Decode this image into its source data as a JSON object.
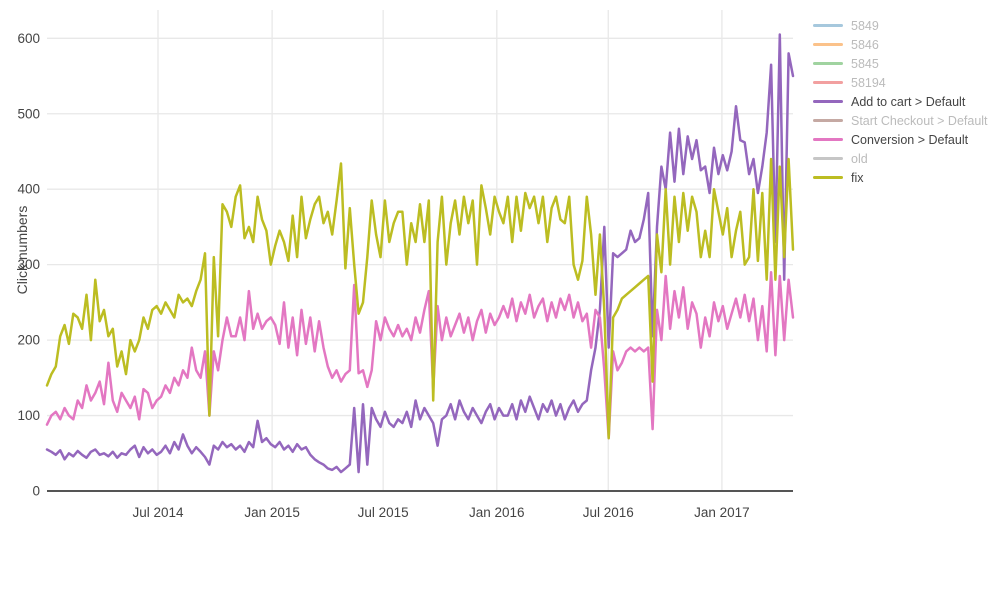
{
  "colors": {
    "axis_text": "#444444",
    "grid": "#e8e8e8",
    "zero_line": "#555555",
    "hidden_legend_text": "#bbbbbb",
    "background": "#ffffff"
  },
  "chart_data": {
    "type": "line",
    "title": "",
    "xlabel": "",
    "ylabel": "Click numbers",
    "ylim": [
      0,
      620
    ],
    "grid": true,
    "legend_position": "right",
    "x_unit": "weeks starting Jan 2014",
    "n_points": 171,
    "yticks": [
      0,
      100,
      200,
      300,
      400,
      500,
      600
    ],
    "xticks": [
      {
        "label": "Jul 2014",
        "i": 25.3
      },
      {
        "label": "Jan 2015",
        "i": 51.3
      },
      {
        "label": "Jul 2015",
        "i": 76.6
      },
      {
        "label": "Jan 2016",
        "i": 102.5
      },
      {
        "label": "Jul 2016",
        "i": 127.9
      },
      {
        "label": "Jan 2017",
        "i": 153.8
      }
    ],
    "series": [
      {
        "name": "5849",
        "color": "#a6c8dd",
        "visible": false,
        "values": []
      },
      {
        "name": "5846",
        "color": "#fbc28a",
        "visible": false,
        "values": []
      },
      {
        "name": "5845",
        "color": "#a0d3a0",
        "visible": false,
        "values": []
      },
      {
        "name": "58194",
        "color": "#f2a0a0",
        "visible": false,
        "values": []
      },
      {
        "name": "Add to cart > Default",
        "color": "#9467bd",
        "visible": true,
        "values": [
          55,
          52,
          48,
          54,
          42,
          50,
          46,
          53,
          48,
          44,
          52,
          55,
          48,
          50,
          46,
          52,
          44,
          50,
          48,
          55,
          60,
          45,
          58,
          50,
          55,
          48,
          52,
          60,
          50,
          65,
          55,
          75,
          60,
          50,
          58,
          52,
          45,
          35,
          60,
          55,
          65,
          58,
          62,
          55,
          60,
          52,
          65,
          58,
          93,
          65,
          70,
          62,
          58,
          65,
          55,
          60,
          52,
          62,
          55,
          58,
          48,
          42,
          38,
          35,
          30,
          28,
          32,
          25,
          30,
          35,
          110,
          25,
          115,
          35,
          110,
          95,
          85,
          105,
          90,
          85,
          95,
          90,
          105,
          85,
          120,
          95,
          110,
          100,
          90,
          60,
          95,
          100,
          115,
          95,
          120,
          105,
          95,
          110,
          100,
          90,
          105,
          115,
          95,
          110,
          100,
          100,
          115,
          95,
          120,
          105,
          125,
          110,
          95,
          115,
          105,
          120,
          100,
          115,
          95,
          110,
          120,
          105,
          115,
          120,
          160,
          190,
          240,
          350,
          190,
          315,
          310,
          315,
          320,
          345,
          330,
          335,
          360,
          395,
          205,
          350,
          430,
          400,
          475,
          410,
          480,
          420,
          470,
          440,
          465,
          425,
          430,
          395,
          455,
          420,
          445,
          425,
          450,
          510,
          465,
          462,
          420,
          440,
          395,
          430,
          475,
          565,
          330,
          605,
          280,
          580,
          550
        ]
      },
      {
        "name": "Start Checkout > Default",
        "color": "#c5a9a3",
        "visible": false,
        "values": []
      },
      {
        "name": "Conversion > Default",
        "color": "#e377c2",
        "visible": true,
        "values": [
          88,
          100,
          105,
          95,
          110,
          100,
          95,
          120,
          110,
          140,
          120,
          130,
          145,
          115,
          170,
          120,
          105,
          130,
          120,
          110,
          125,
          95,
          135,
          130,
          110,
          120,
          125,
          140,
          130,
          150,
          140,
          160,
          150,
          190,
          160,
          150,
          185,
          100,
          185,
          160,
          200,
          230,
          205,
          205,
          230,
          200,
          265,
          215,
          235,
          215,
          225,
          230,
          220,
          195,
          250,
          190,
          230,
          180,
          240,
          195,
          230,
          185,
          225,
          190,
          165,
          150,
          160,
          145,
          155,
          160,
          273,
          156,
          160,
          138,
          160,
          225,
          200,
          230,
          215,
          205,
          220,
          205,
          215,
          200,
          230,
          210,
          240,
          265,
          135,
          245,
          200,
          230,
          205,
          220,
          235,
          210,
          230,
          200,
          225,
          240,
          210,
          235,
          220,
          230,
          245,
          230,
          255,
          225,
          250,
          235,
          260,
          230,
          245,
          255,
          225,
          250,
          230,
          255,
          240,
          260,
          230,
          250,
          225,
          235,
          190,
          240,
          230,
          160,
          70,
          185,
          160,
          170,
          185,
          190,
          185,
          190,
          185,
          190,
          82,
          240,
          200,
          285,
          215,
          265,
          230,
          270,
          215,
          250,
          235,
          190,
          230,
          205,
          250,
          225,
          245,
          215,
          235,
          255,
          230,
          260,
          225,
          255,
          200,
          245,
          185,
          290,
          180,
          285,
          200,
          280,
          230
        ]
      },
      {
        "name": "old",
        "color": "#c6c6c6",
        "visible": false,
        "values": []
      },
      {
        "name": "fix",
        "color": "#bcbd22",
        "visible": true,
        "values": [
          140,
          155,
          165,
          205,
          220,
          195,
          235,
          230,
          215,
          260,
          200,
          280,
          225,
          240,
          205,
          215,
          165,
          185,
          155,
          200,
          185,
          200,
          230,
          215,
          240,
          245,
          235,
          250,
          240,
          230,
          260,
          250,
          255,
          245,
          265,
          280,
          315,
          100,
          310,
          205,
          380,
          370,
          350,
          390,
          405,
          335,
          350,
          330,
          390,
          360,
          345,
          300,
          325,
          345,
          330,
          305,
          365,
          310,
          390,
          335,
          360,
          380,
          390,
          355,
          370,
          340,
          385,
          434,
          295,
          375,
          300,
          235,
          250,
          310,
          385,
          340,
          310,
          385,
          330,
          355,
          370,
          370,
          300,
          355,
          330,
          380,
          330,
          385,
          120,
          330,
          390,
          300,
          355,
          385,
          340,
          390,
          355,
          385,
          300,
          405,
          375,
          340,
          390,
          370,
          355,
          390,
          330,
          390,
          345,
          395,
          375,
          390,
          355,
          390,
          330,
          375,
          390,
          360,
          355,
          390,
          300,
          280,
          305,
          390,
          340,
          260,
          340,
          240,
          70,
          230,
          240,
          255,
          260,
          265,
          270,
          275,
          280,
          285,
          145,
          340,
          290,
          400,
          300,
          390,
          330,
          395,
          345,
          390,
          370,
          310,
          345,
          310,
          400,
          370,
          340,
          375,
          310,
          345,
          370,
          300,
          310,
          400,
          305,
          395,
          280,
          440,
          280,
          430,
          310,
          440,
          320
        ]
      }
    ]
  }
}
